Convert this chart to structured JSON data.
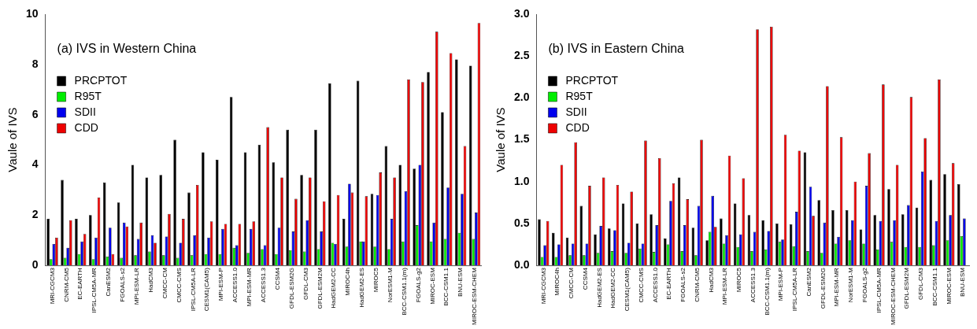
{
  "chart_data": [
    {
      "type": "bar",
      "title": "(a) IVS in Western China",
      "ylabel": "Vaule of IVS",
      "legend": "top left",
      "categories": [
        "MRI-CGCM3",
        "CNRM-CM5",
        "EC-EARTH",
        "IPSL-CM5A-MR",
        "CanESM2",
        "FGOALS-s2",
        "MPI-ESM-LR",
        "HadCM3",
        "CMCC-CM",
        "CMCC-CMS",
        "IPSL-CM5A-LR",
        "CESM1(CAM5)",
        "MPI-ESM-P",
        "ACCESS1.0",
        "MPI-ESM-MR",
        "ACCESS1.3",
        "CCSM4",
        "GFDL-ESM2G",
        "GFDL-CM3",
        "GFDL-ESM2M",
        "HadGEM2-CC",
        "MIROC4h",
        "HadGEM2-ES",
        "MIROC5",
        "NorESM1-M",
        "BCC-CSM1.1(m)",
        "FGOALS-g2",
        "MIROC-ESM",
        "BCC-CSM1.1",
        "BNU-ESM",
        "MIROC-ESM-CHEM"
      ],
      "ylim": [
        0,
        10
      ],
      "yticks": [
        0,
        2,
        4,
        6,
        8,
        10
      ],
      "series": [
        {
          "name": "PRCPTOT",
          "color": "#000000",
          "values": [
            1.85,
            3.4,
            1.85,
            2.0,
            3.3,
            2.5,
            4.0,
            3.5,
            3.6,
            5.0,
            2.9,
            4.5,
            4.2,
            6.7,
            4.5,
            4.8,
            4.1,
            5.4,
            3.6,
            5.4,
            7.25,
            1.85,
            7.35,
            2.85,
            4.75,
            4.0,
            3.85,
            7.7,
            6.1,
            8.2,
            7.95
          ]
        },
        {
          "name": "R95T",
          "color": "#00ee00",
          "values": [
            0.25,
            0.3,
            0.45,
            0.25,
            0.35,
            0.3,
            0.4,
            0.55,
            0.4,
            0.3,
            0.4,
            0.45,
            0.45,
            0.7,
            0.5,
            0.65,
            0.45,
            0.6,
            0.55,
            0.65,
            0.9,
            0.75,
            0.95,
            0.75,
            0.65,
            0.95,
            1.6,
            0.95,
            1.05,
            1.3,
            1.05
          ]
        },
        {
          "name": "SDII",
          "color": "#0000ee",
          "values": [
            0.85,
            0.7,
            0.95,
            1.1,
            1.5,
            1.7,
            1.05,
            1.2,
            1.15,
            0.9,
            1.2,
            1.1,
            1.45,
            0.8,
            1.45,
            0.8,
            1.5,
            1.35,
            1.8,
            1.35,
            0.85,
            3.25,
            0.95,
            2.8,
            1.85,
            2.95,
            4.0,
            1.7,
            3.1,
            2.85,
            2.1
          ]
        },
        {
          "name": "CDD",
          "color": "#ee0000",
          "values": [
            1.1,
            1.8,
            1.25,
            2.7,
            0.45,
            1.55,
            1.7,
            0.9,
            2.05,
            1.85,
            3.2,
            1.75,
            1.65,
            1.65,
            1.75,
            5.5,
            3.5,
            2.65,
            3.5,
            2.55,
            2.8,
            2.9,
            2.75,
            3.7,
            3.5,
            7.4,
            7.3,
            9.3,
            8.45,
            4.75,
            9.65
          ]
        }
      ]
    },
    {
      "type": "bar",
      "title": "(b) IVS in Eastern China",
      "ylabel": "Vaule of IVS",
      "legend": "top left",
      "categories": [
        "MRI-CGCM3",
        "MIROC4h",
        "CMCC-CM",
        "CCSM4",
        "HadGEM2-ES",
        "HadGEM2-CC",
        "CESM1(CAM5)",
        "CMCC-CMS",
        "ACCESS1.0",
        "EC-EARTH",
        "FGOALS-s2",
        "CNRM-CM5",
        "HadCM3",
        "MPI-ESM-LR",
        "MIROC5",
        "ACCESS1.3",
        "BCC-CSM1.1(m)",
        "MPI-ESM-P",
        "IPSL-CM5A-LR",
        "CanESM2",
        "GFDL-ESM2G",
        "MPI-ESM-MR",
        "NorESM1-M",
        "FGOALS-g2",
        "IPSL-CM5A-MR",
        "MIROC-ESM-CHEM",
        "GFDL-ESM2M",
        "GFDL-CM3",
        "BCC-CSM1.1",
        "MIROC-ESM",
        "BNU-ESM"
      ],
      "ylim": [
        0,
        3
      ],
      "yticks": [
        {
          "value": 0,
          "label": "0.0"
        },
        {
          "value": 0.5,
          "label": "0.5"
        },
        {
          "value": 1,
          "label": "1.0"
        },
        {
          "value": 1.5,
          "label": "1.5"
        },
        {
          "value": 2,
          "label": "2.0"
        },
        {
          "value": 2.5,
          "label": "2.5"
        },
        {
          "value": 3,
          "label": "3.0"
        }
      ],
      "series": [
        {
          "name": "PRCPTOT",
          "color": "#000000",
          "values": [
            0.55,
            0.39,
            0.33,
            0.71,
            0.37,
            0.44,
            0.74,
            0.5,
            0.61,
            0.32,
            1.05,
            0.45,
            0.3,
            0.56,
            0.74,
            0.6,
            0.54,
            0.5,
            0.49,
            1.35,
            0.78,
            0.66,
            0.66,
            0.43,
            0.6,
            0.91,
            0.61,
            0.69,
            1.02,
            1.09,
            0.97
          ]
        },
        {
          "name": "R95T",
          "color": "#00ee00",
          "values": [
            0.1,
            0.1,
            0.12,
            0.12,
            0.15,
            0.17,
            0.15,
            0.2,
            0.16,
            0.25,
            0.17,
            0.12,
            0.4,
            0.26,
            0.22,
            0.17,
            0.19,
            0.28,
            0.23,
            0.17,
            0.15,
            0.26,
            0.3,
            0.26,
            0.19,
            0.28,
            0.22,
            0.22,
            0.24,
            0.3,
            0.35
          ]
        },
        {
          "name": "SDII",
          "color": "#0000ee",
          "values": [
            0.24,
            0.25,
            0.26,
            0.26,
            0.47,
            0.42,
            0.27,
            0.26,
            0.48,
            0.77,
            0.48,
            0.71,
            0.83,
            0.36,
            0.37,
            0.4,
            0.41,
            0.31,
            0.64,
            0.94,
            0.51,
            0.34,
            0.54,
            0.95,
            0.53,
            0.54,
            0.72,
            1.12,
            0.53,
            0.6,
            0.56
          ]
        },
        {
          "name": "CDD",
          "color": "#ee0000",
          "values": [
            0.53,
            1.2,
            1.47,
            0.95,
            1.05,
            0.96,
            0.88,
            1.49,
            1.28,
            0.98,
            0.79,
            1.5,
            0.46,
            1.31,
            1.04,
            2.82,
            2.85,
            1.56,
            1.37,
            0.59,
            2.14,
            1.53,
            1.0,
            1.34,
            2.16,
            1.2,
            2.01,
            1.52,
            2.22,
            1.22,
            null
          ]
        }
      ]
    }
  ]
}
